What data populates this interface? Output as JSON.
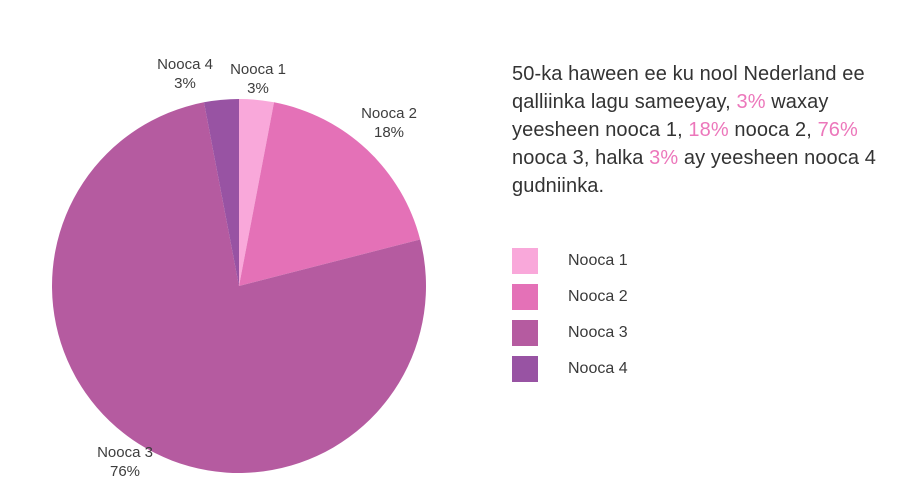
{
  "chart_data": {
    "type": "pie",
    "categories": [
      "Nooca 1",
      "Nooca 2",
      "Nooca 3",
      "Nooca 4"
    ],
    "values": [
      3,
      18,
      76,
      3
    ],
    "unit": "%",
    "colors": [
      "#F9A8DA",
      "#E471B7",
      "#B55BA0",
      "#9853A3"
    ],
    "start_angle_deg": 0,
    "direction": "clockwise",
    "legend_position": "right",
    "labels": [
      {
        "name": "Nooca 1",
        "value": "3%"
      },
      {
        "name": "Nooca 2",
        "value": "18%"
      },
      {
        "name": "Nooca 3",
        "value": "76%"
      },
      {
        "name": "Nooca 4",
        "value": "3%"
      }
    ]
  },
  "description": {
    "text_color": "#333333",
    "highlight_color": "#EC77BB",
    "lines": [
      [
        {
          "t": "50-ka haween ee ku nool Nederland ee",
          "hl": false
        }
      ],
      [
        {
          "t": "qalliinka lagu sameeyay, ",
          "hl": false
        },
        {
          "t": "3%",
          "hl": true
        },
        {
          "t": " waxay",
          "hl": false
        }
      ],
      [
        {
          "t": "yeesheen nooca 1, ",
          "hl": false
        },
        {
          "t": "18%",
          "hl": true
        },
        {
          "t": " nooca 2, ",
          "hl": false
        },
        {
          "t": "76%",
          "hl": true
        }
      ],
      [
        {
          "t": "nooca 3, halka ",
          "hl": false
        },
        {
          "t": "3%",
          "hl": true
        },
        {
          "t": " ay yeesheen nooca 4",
          "hl": false
        }
      ],
      [
        {
          "t": "gudniinka.",
          "hl": false
        }
      ]
    ]
  },
  "legend": {
    "items": [
      {
        "label": "Nooca 1"
      },
      {
        "label": "Nooca 2"
      },
      {
        "label": "Nooca 3"
      },
      {
        "label": "Nooca 4"
      }
    ]
  }
}
